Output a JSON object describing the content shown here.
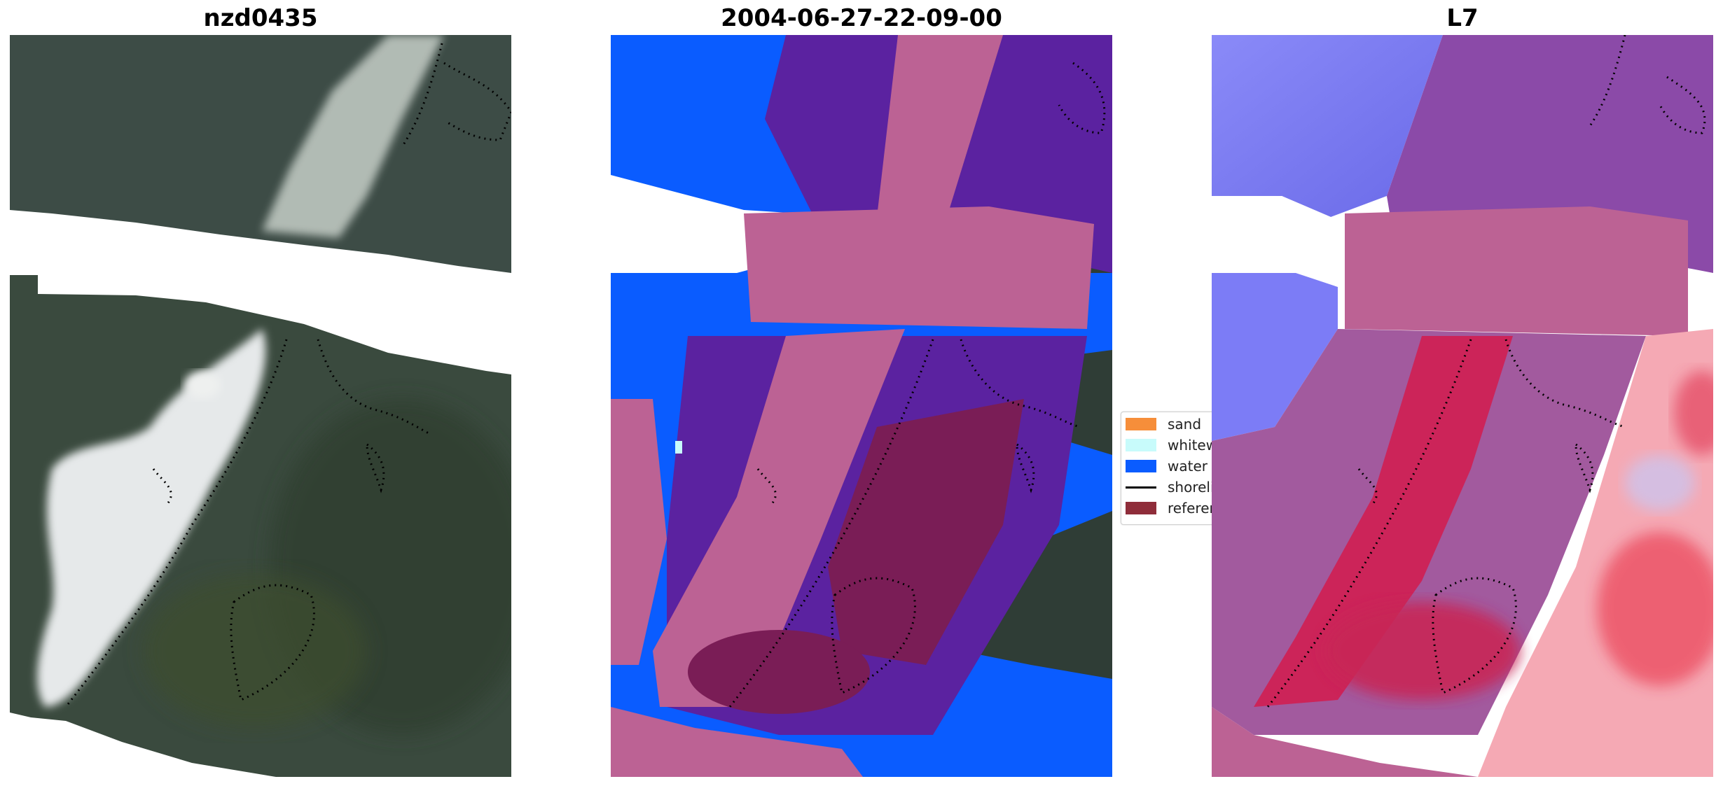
{
  "panels": [
    {
      "title": "nzd0435"
    },
    {
      "title": "2004-06-27-22-09-00"
    },
    {
      "title": "L7"
    }
  ],
  "legend": {
    "items": [
      {
        "label": "sand",
        "color": "#f68e3a",
        "kind": "patch"
      },
      {
        "label": "whitewater",
        "color": "#c8fbfb",
        "kind": "patch"
      },
      {
        "label": "water",
        "color": "#0a5cff",
        "kind": "patch"
      },
      {
        "label": "shoreline",
        "color": "#000000",
        "kind": "line"
      },
      {
        "label": "reference",
        "color": "#8f2d3a",
        "kind": "patch"
      }
    ]
  },
  "colors": {
    "land": "#3f4e44",
    "water": "#0a5cff",
    "overlay_pink": "#bc6294",
    "overlay_purple": "#5b22a0",
    "reference": "#7a1d56",
    "prob_blue": "#7c7cf6",
    "prob_red": "#e2163f"
  }
}
